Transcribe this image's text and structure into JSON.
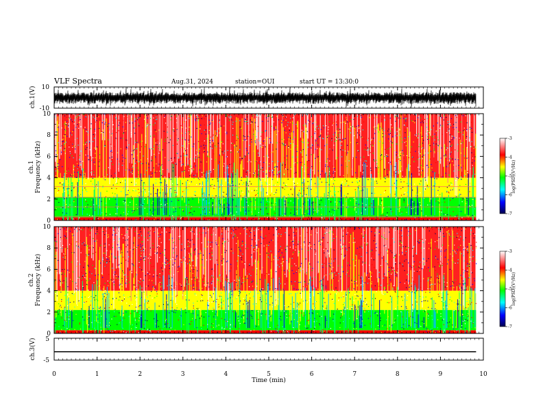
{
  "header": {
    "title": "VLF Spectra",
    "date": "Aug.31, 2024",
    "station": "station=OUI",
    "start": "start UT = 13:30:0"
  },
  "chart_data": [
    {
      "type": "line",
      "panel": "ch1-waveform",
      "ylabel": "ch.1(V)",
      "ylim": [
        -10,
        10
      ],
      "yticks": [
        "10",
        "-10"
      ],
      "xlim": [
        0,
        10
      ],
      "x_extent": 9.83,
      "trace_description_level": [
        -3,
        4
      ]
    },
    {
      "type": "heatmap",
      "panel": "ch1-spectrogram",
      "ylabel_line1": "ch.1",
      "ylabel_line2": "Frequency (kHz)",
      "ylim": [
        0,
        10
      ],
      "yticks": [
        "0",
        "2",
        "4",
        "6",
        "8",
        "10"
      ],
      "xlim": [
        0,
        10
      ],
      "x_extent": 9.83,
      "colorbar": {
        "label": "log(PSD)(V²/Hz)",
        "min": -7,
        "max": -3,
        "ticks": [
          "-3",
          "-4",
          "-5",
          "-6",
          "-7"
        ]
      },
      "colors": [
        "#000060",
        "#0000ff",
        "#00ffff",
        "#00ff00",
        "#ffff00",
        "#ff0000",
        "#ffffff"
      ]
    },
    {
      "type": "heatmap",
      "panel": "ch2-spectrogram",
      "ylabel_line1": "ch.2",
      "ylabel_line2": "Frequency (kHz)",
      "ylim": [
        0,
        10
      ],
      "yticks": [
        "0",
        "2",
        "4",
        "6",
        "8",
        "10"
      ],
      "xlim": [
        0,
        10
      ],
      "x_extent": 9.83,
      "colorbar": {
        "label": "log(PSD)(V²/Hz)",
        "min": -7,
        "max": -3,
        "ticks": [
          "-3",
          "-4",
          "-5",
          "-6",
          "-7"
        ]
      }
    },
    {
      "type": "line",
      "panel": "ch3-waveform",
      "ylabel": "ch.3(V)",
      "ylim": [
        -5,
        5
      ],
      "yticks": [
        "5",
        "-5"
      ],
      "value": -1.2,
      "xlim": [
        0,
        10
      ],
      "x_extent": 9.83,
      "xlabel": "Time (min)",
      "xticks": [
        "0",
        "1",
        "2",
        "3",
        "4",
        "5",
        "6",
        "7",
        "8",
        "9",
        "10"
      ]
    }
  ]
}
